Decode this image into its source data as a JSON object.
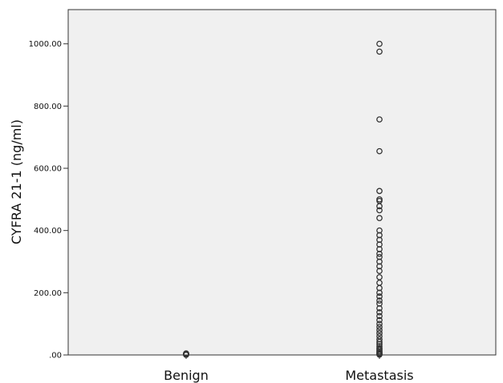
{
  "chart_data": {
    "type": "scatter",
    "title": "",
    "xlabel": "",
    "ylabel": "CYFRA 21-1 (ng/ml)",
    "categories": [
      "Benign",
      "Metastasis"
    ],
    "ylim": [
      0,
      1110
    ],
    "yticks": [
      {
        "value": 0,
        "label": ".00"
      },
      {
        "value": 200,
        "label": "200.00"
      },
      {
        "value": 400,
        "label": "400.00"
      },
      {
        "value": 600,
        "label": "600.00"
      },
      {
        "value": 800,
        "label": "800.00"
      },
      {
        "value": 1000,
        "label": "1000.00"
      }
    ],
    "grid": false,
    "plot_background": "#f0f0f0",
    "marker_color": "#333333",
    "series": [
      {
        "category": "Benign",
        "values": [
          0.5,
          1,
          1.5,
          2,
          2.5,
          3,
          3.5,
          4,
          5
        ]
      },
      {
        "category": "Metastasis",
        "values": [
          1000,
          975,
          757,
          655,
          527,
          500,
          495,
          478,
          465,
          440,
          400,
          385,
          370,
          355,
          340,
          325,
          315,
          300,
          285,
          270,
          250,
          232,
          215,
          200,
          188,
          175,
          165,
          150,
          137,
          125,
          112,
          100,
          90,
          80,
          70,
          60,
          50,
          42,
          35,
          28,
          22,
          17,
          12,
          8,
          5,
          3,
          1
        ]
      }
    ]
  }
}
